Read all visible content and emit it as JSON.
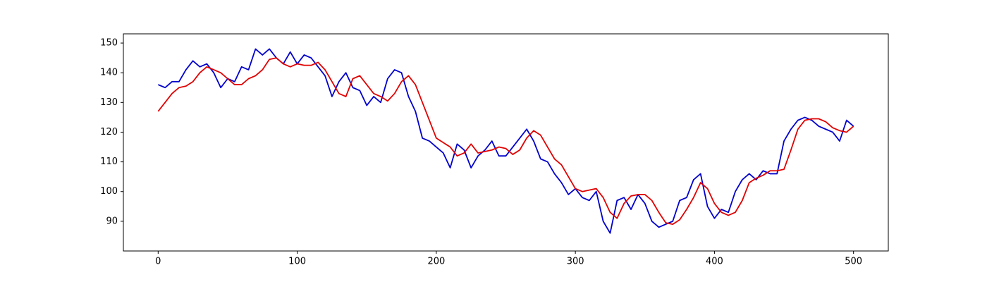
{
  "chart_data": {
    "type": "line",
    "x": [
      0,
      5,
      10,
      15,
      20,
      25,
      30,
      35,
      40,
      45,
      50,
      55,
      60,
      65,
      70,
      75,
      80,
      85,
      90,
      95,
      100,
      105,
      110,
      115,
      120,
      125,
      130,
      135,
      140,
      145,
      150,
      155,
      160,
      165,
      170,
      175,
      180,
      185,
      190,
      195,
      200,
      205,
      210,
      215,
      220,
      225,
      230,
      235,
      240,
      245,
      250,
      255,
      260,
      265,
      270,
      275,
      280,
      285,
      290,
      295,
      300,
      305,
      310,
      315,
      320,
      325,
      330,
      335,
      340,
      345,
      350,
      355,
      360,
      365,
      370,
      375,
      380,
      385,
      390,
      395,
      400,
      405,
      410,
      415,
      420,
      425,
      430,
      435,
      440,
      445,
      450,
      455,
      460,
      465,
      470,
      475,
      480,
      485,
      490,
      495,
      500
    ],
    "series": [
      {
        "color": "#0000cc",
        "values": [
          136,
          135,
          137,
          137,
          141,
          144,
          142,
          143,
          140,
          135,
          138,
          137,
          142,
          141,
          148,
          146,
          148,
          145,
          143,
          147,
          143,
          146,
          145,
          142,
          139,
          132,
          137,
          140,
          135,
          134,
          129,
          132,
          130,
          138,
          141,
          140,
          132,
          127,
          118,
          117,
          115,
          113,
          108,
          116,
          114,
          108,
          112,
          114,
          117,
          112,
          112,
          115,
          118,
          121,
          117,
          111,
          110,
          106,
          103,
          99,
          101,
          98,
          97,
          100,
          90,
          86,
          97,
          98,
          94,
          99,
          96,
          90,
          88,
          89,
          90,
          97,
          98,
          104,
          106,
          95,
          91,
          94,
          93,
          100,
          104,
          106,
          104,
          107,
          106,
          106,
          117,
          121,
          124,
          125,
          124,
          122,
          121,
          120,
          117,
          124,
          122
        ]
      },
      {
        "color": "#e00000",
        "values": [
          127,
          130,
          133,
          135,
          135.5,
          137,
          140,
          142,
          141,
          140,
          138,
          136,
          136,
          138,
          139,
          141,
          144.5,
          145,
          143,
          142,
          143,
          142.5,
          142.5,
          143.5,
          141,
          137,
          133,
          132,
          138,
          139,
          136,
          133,
          132,
          130.5,
          133,
          137,
          139,
          136,
          130,
          124,
          118,
          116.5,
          115,
          112,
          113,
          116,
          113,
          113.5,
          114,
          115,
          114.5,
          112.5,
          114,
          118,
          120.5,
          119,
          115,
          111,
          109,
          105,
          101,
          100,
          100.5,
          101,
          98,
          93,
          91,
          96,
          98.5,
          99,
          99,
          97,
          93,
          89.5,
          89,
          90.5,
          94,
          98,
          103,
          101,
          96,
          93,
          92,
          93,
          97,
          103,
          104.5,
          105.5,
          107,
          107,
          107.5,
          114,
          121,
          124,
          124.5,
          124.5,
          123.5,
          121.5,
          120.5,
          120,
          122
        ]
      }
    ],
    "xlim": [
      -25,
      525
    ],
    "ylim": [
      80,
      153.1
    ],
    "xticks": [
      0,
      100,
      200,
      300,
      400,
      500
    ],
    "yticks": [
      90,
      100,
      110,
      120,
      130,
      140,
      150
    ],
    "grid": false
  }
}
